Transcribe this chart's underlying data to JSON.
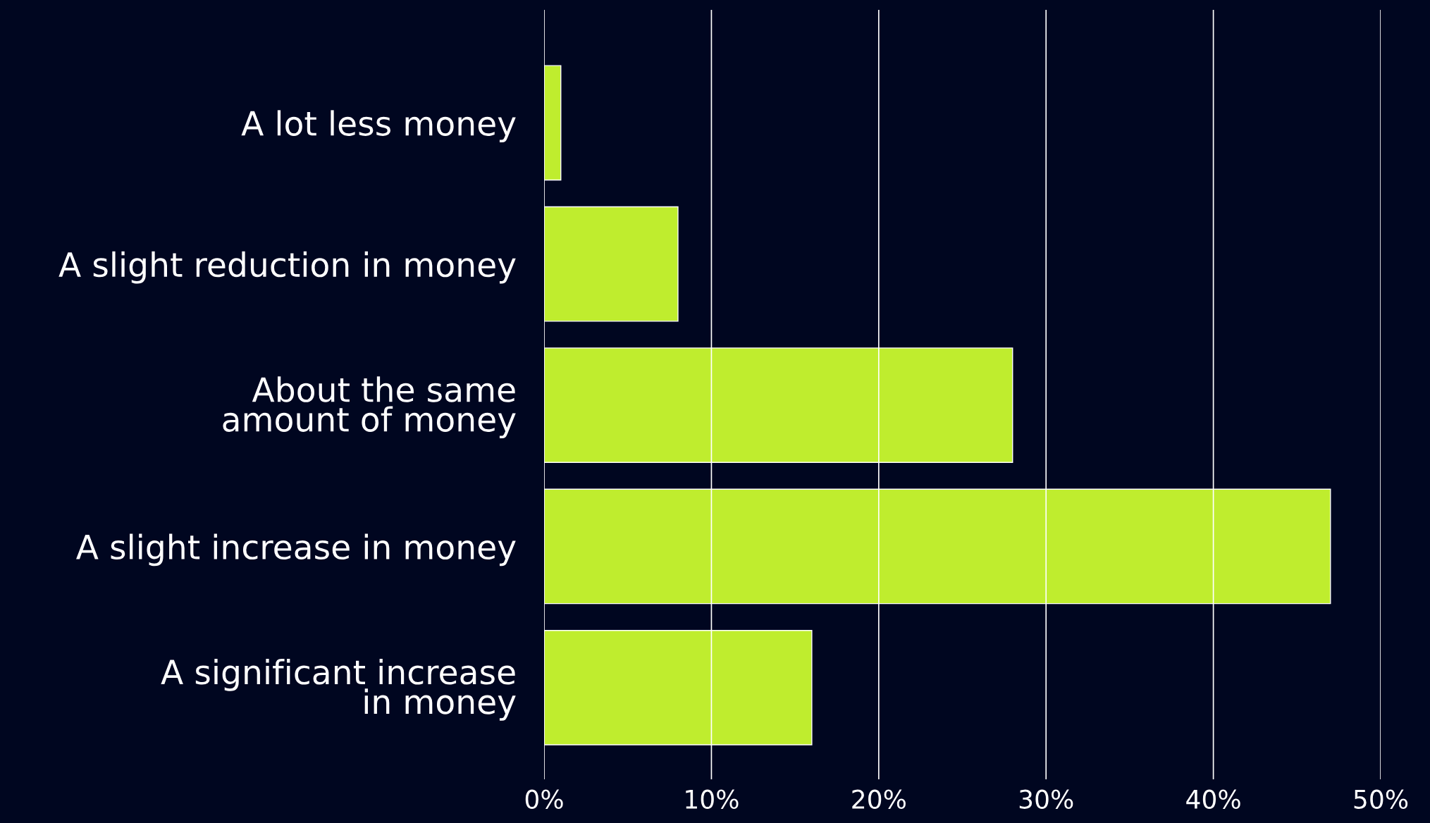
{
  "chart_data": {
    "type": "bar",
    "orientation": "horizontal",
    "categories": [
      "A lot less money",
      "A slight reduction in money",
      "About the same\namount of money",
      "A slight increase in money",
      "A significant increase\nin money"
    ],
    "values": [
      1,
      8,
      28,
      47,
      16
    ],
    "color": "#bfed2e",
    "xlim": [
      0,
      50
    ],
    "xticks": [
      {
        "value": 0,
        "label": "0%"
      },
      {
        "value": 10,
        "label": "10%"
      },
      {
        "value": 20,
        "label": "20%"
      },
      {
        "value": 30,
        "label": "30%"
      },
      {
        "value": 40,
        "label": "40%"
      },
      {
        "value": 50,
        "label": "50%"
      }
    ],
    "grid": "x"
  }
}
